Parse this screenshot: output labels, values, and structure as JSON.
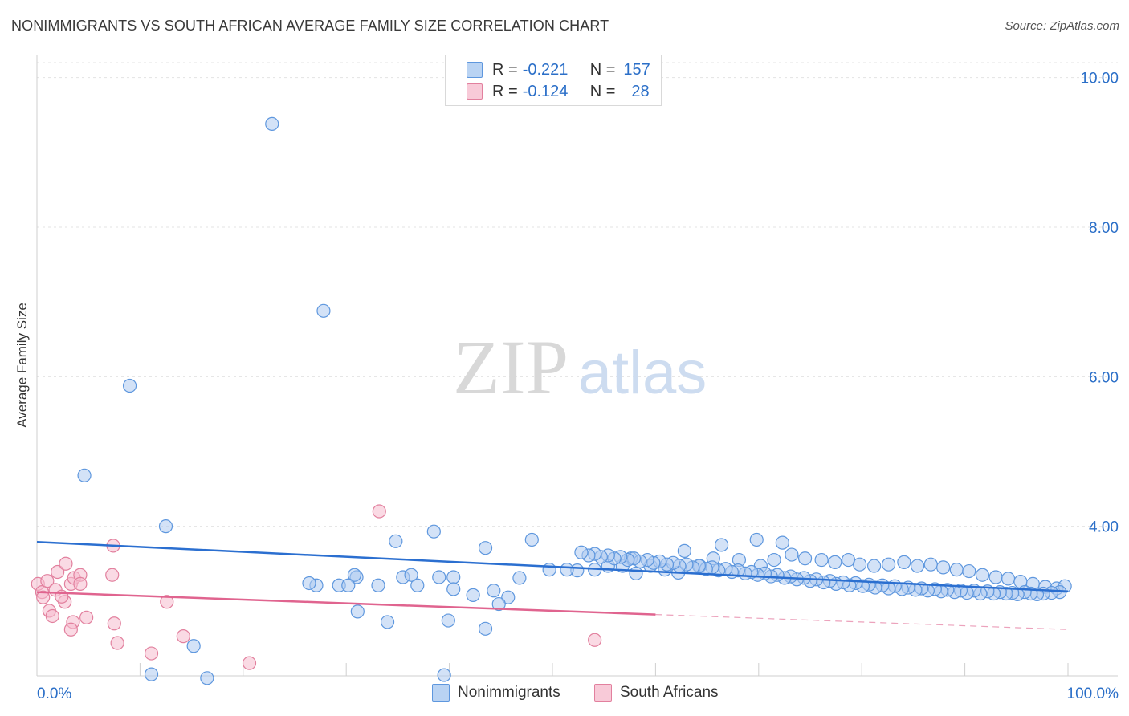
{
  "header": {
    "title": "NONIMMIGRANTS VS SOUTH AFRICAN AVERAGE FAMILY SIZE CORRELATION CHART",
    "source": "Source: ZipAtlas.com"
  },
  "watermark": {
    "zip": "ZIP",
    "atlas": "atlas"
  },
  "legend": {
    "rows": [
      {
        "r_label": "R = ",
        "r_value": "-0.221",
        "n_label": "N = ",
        "n_value": "157"
      },
      {
        "r_label": "R = ",
        "r_value": "-0.124",
        "n_label": "N = ",
        "n_value": "28"
      }
    ]
  },
  "colors": {
    "blue_fill": "#aecbf1",
    "blue_stroke": "#5e97de",
    "blue_line": "#2b6fd0",
    "pink_fill": "#f6bccd",
    "pink_stroke": "#e2809e",
    "pink_line": "#e0648f",
    "accent_text": "#2b6fc8"
  },
  "chart_data": {
    "type": "scatter",
    "title": "NONIMMIGRANTS VS SOUTH AFRICAN AVERAGE FAMILY SIZE CORRELATION CHART",
    "xlabel": "",
    "ylabel": "Average Family Size",
    "xlim": [
      0,
      100
    ],
    "ylim": [
      2.0,
      10.2
    ],
    "x_tick_labels": [
      "0.0%",
      "100.0%"
    ],
    "y_ticks": [
      4.0,
      6.0,
      8.0,
      10.0
    ],
    "y_tick_labels": [
      "4.00",
      "6.00",
      "8.00",
      "10.00"
    ],
    "legend_position": "bottom-center",
    "series": [
      {
        "name": "Nonimmigrants",
        "trend": {
          "x": [
            0,
            100
          ],
          "y": [
            3.79,
            3.13
          ],
          "dashed_from": null
        },
        "points": [
          [
            22.8,
            9.38
          ],
          [
            27.8,
            6.88
          ],
          [
            9,
            5.88
          ],
          [
            4.6,
            4.68
          ],
          [
            12.5,
            4.0
          ],
          [
            34.8,
            3.8
          ],
          [
            38.5,
            3.93
          ],
          [
            43.5,
            3.71
          ],
          [
            48,
            3.82
          ],
          [
            52.4,
            3.41
          ],
          [
            57.6,
            3.57
          ],
          [
            62.8,
            3.67
          ],
          [
            66.4,
            3.75
          ],
          [
            69.8,
            3.82
          ],
          [
            72.3,
            3.78
          ],
          [
            27.1,
            3.21
          ],
          [
            26.4,
            3.24
          ],
          [
            29.3,
            3.21
          ],
          [
            31,
            3.32
          ],
          [
            33.1,
            3.21
          ],
          [
            35.5,
            3.32
          ],
          [
            39,
            3.32
          ],
          [
            40.4,
            3.32
          ],
          [
            44.3,
            3.14
          ],
          [
            46.8,
            3.31
          ],
          [
            49.7,
            3.42
          ],
          [
            51.4,
            3.42
          ],
          [
            54.1,
            3.42
          ],
          [
            55.4,
            3.47
          ],
          [
            56.8,
            3.47
          ],
          [
            58.1,
            3.37
          ],
          [
            59.5,
            3.47
          ],
          [
            60.9,
            3.42
          ],
          [
            62.2,
            3.38
          ],
          [
            64.3,
            3.47
          ],
          [
            65.6,
            3.57
          ],
          [
            68.1,
            3.55
          ],
          [
            70.2,
            3.47
          ],
          [
            71.5,
            3.55
          ],
          [
            73.2,
            3.62
          ],
          [
            74.5,
            3.57
          ],
          [
            76.1,
            3.55
          ],
          [
            77.4,
            3.52
          ],
          [
            78.7,
            3.55
          ],
          [
            79.8,
            3.49
          ],
          [
            81.2,
            3.47
          ],
          [
            82.6,
            3.49
          ],
          [
            84.1,
            3.52
          ],
          [
            85.4,
            3.47
          ],
          [
            86.7,
            3.49
          ],
          [
            87.9,
            3.45
          ],
          [
            89.2,
            3.42
          ],
          [
            90.4,
            3.4
          ],
          [
            91.7,
            3.35
          ],
          [
            93,
            3.32
          ],
          [
            94.2,
            3.3
          ],
          [
            95.4,
            3.26
          ],
          [
            96.6,
            3.23
          ],
          [
            97.8,
            3.19
          ],
          [
            98.9,
            3.17
          ],
          [
            99.7,
            3.2
          ],
          [
            99.2,
            3.12
          ],
          [
            98.4,
            3.11
          ],
          [
            97.6,
            3.1
          ],
          [
            97,
            3.09
          ],
          [
            96.4,
            3.1
          ],
          [
            95.8,
            3.12
          ],
          [
            95.1,
            3.09
          ],
          [
            94.6,
            3.11
          ],
          [
            94,
            3.1
          ],
          [
            93.4,
            3.12
          ],
          [
            92.8,
            3.1
          ],
          [
            92.2,
            3.13
          ],
          [
            91.5,
            3.1
          ],
          [
            90.9,
            3.14
          ],
          [
            90.2,
            3.11
          ],
          [
            89.6,
            3.14
          ],
          [
            89,
            3.12
          ],
          [
            88.3,
            3.15
          ],
          [
            87.7,
            3.13
          ],
          [
            87.1,
            3.16
          ],
          [
            86.4,
            3.14
          ],
          [
            85.8,
            3.17
          ],
          [
            85.2,
            3.15
          ],
          [
            84.5,
            3.18
          ],
          [
            83.9,
            3.16
          ],
          [
            83.2,
            3.2
          ],
          [
            82.6,
            3.17
          ],
          [
            82,
            3.21
          ],
          [
            81.3,
            3.18
          ],
          [
            80.7,
            3.22
          ],
          [
            80.1,
            3.2
          ],
          [
            79.4,
            3.24
          ],
          [
            78.8,
            3.21
          ],
          [
            78.2,
            3.25
          ],
          [
            77.5,
            3.23
          ],
          [
            76.9,
            3.27
          ],
          [
            76.3,
            3.25
          ],
          [
            75.6,
            3.29
          ],
          [
            75,
            3.27
          ],
          [
            74.4,
            3.31
          ],
          [
            73.7,
            3.29
          ],
          [
            73.1,
            3.33
          ],
          [
            72.5,
            3.31
          ],
          [
            71.8,
            3.35
          ],
          [
            71.2,
            3.33
          ],
          [
            70.6,
            3.37
          ],
          [
            69.9,
            3.35
          ],
          [
            69.3,
            3.39
          ],
          [
            68.7,
            3.37
          ],
          [
            68,
            3.41
          ],
          [
            67.4,
            3.39
          ],
          [
            66.8,
            3.43
          ],
          [
            66.1,
            3.41
          ],
          [
            65.5,
            3.45
          ],
          [
            64.9,
            3.43
          ],
          [
            64.2,
            3.47
          ],
          [
            63.6,
            3.45
          ],
          [
            63,
            3.49
          ],
          [
            62.3,
            3.47
          ],
          [
            61.7,
            3.51
          ],
          [
            61.1,
            3.49
          ],
          [
            60.4,
            3.53
          ],
          [
            59.8,
            3.51
          ],
          [
            59.2,
            3.55
          ],
          [
            58.5,
            3.53
          ],
          [
            57.9,
            3.57
          ],
          [
            57.3,
            3.55
          ],
          [
            56.6,
            3.59
          ],
          [
            56,
            3.57
          ],
          [
            55.4,
            3.61
          ],
          [
            54.7,
            3.59
          ],
          [
            54.1,
            3.63
          ],
          [
            53.5,
            3.61
          ],
          [
            52.8,
            3.65
          ],
          [
            15.2,
            2.4
          ],
          [
            11.1,
            2.02
          ],
          [
            16.5,
            1.97
          ],
          [
            34,
            2.72
          ],
          [
            39.5,
            2.01
          ],
          [
            39.9,
            2.74
          ],
          [
            31.1,
            2.86
          ],
          [
            43.5,
            2.63
          ],
          [
            42.3,
            3.08
          ],
          [
            40.4,
            3.16
          ],
          [
            45.7,
            3.05
          ],
          [
            44.8,
            2.96
          ],
          [
            36.9,
            3.21
          ],
          [
            36.3,
            3.35
          ],
          [
            30.8,
            3.35
          ],
          [
            30.2,
            3.21
          ]
        ]
      },
      {
        "name": "South Africans",
        "trend": {
          "x": [
            0,
            100
          ],
          "y": [
            3.12,
            2.62
          ],
          "dashed_from": 60
        },
        "points": [
          [
            0.1,
            3.23
          ],
          [
            0.5,
            3.12
          ],
          [
            1,
            3.27
          ],
          [
            1.2,
            2.87
          ],
          [
            1.8,
            3.15
          ],
          [
            2,
            3.39
          ],
          [
            2.8,
            3.5
          ],
          [
            3.3,
            3.23
          ],
          [
            3.6,
            3.31
          ],
          [
            2.7,
            2.99
          ],
          [
            3.5,
            2.72
          ],
          [
            4.2,
            3.35
          ],
          [
            4.8,
            2.78
          ],
          [
            7.4,
            3.74
          ],
          [
            7.3,
            3.35
          ],
          [
            7.5,
            2.7
          ],
          [
            7.8,
            2.44
          ],
          [
            12.6,
            2.99
          ],
          [
            11.1,
            2.3
          ],
          [
            14.2,
            2.53
          ],
          [
            20.6,
            2.17
          ],
          [
            33.2,
            4.2
          ],
          [
            54.1,
            2.48
          ],
          [
            4.2,
            3.23
          ],
          [
            1.5,
            2.8
          ],
          [
            3.3,
            2.62
          ],
          [
            0.6,
            3.05
          ],
          [
            2.4,
            3.06
          ]
        ]
      }
    ]
  }
}
